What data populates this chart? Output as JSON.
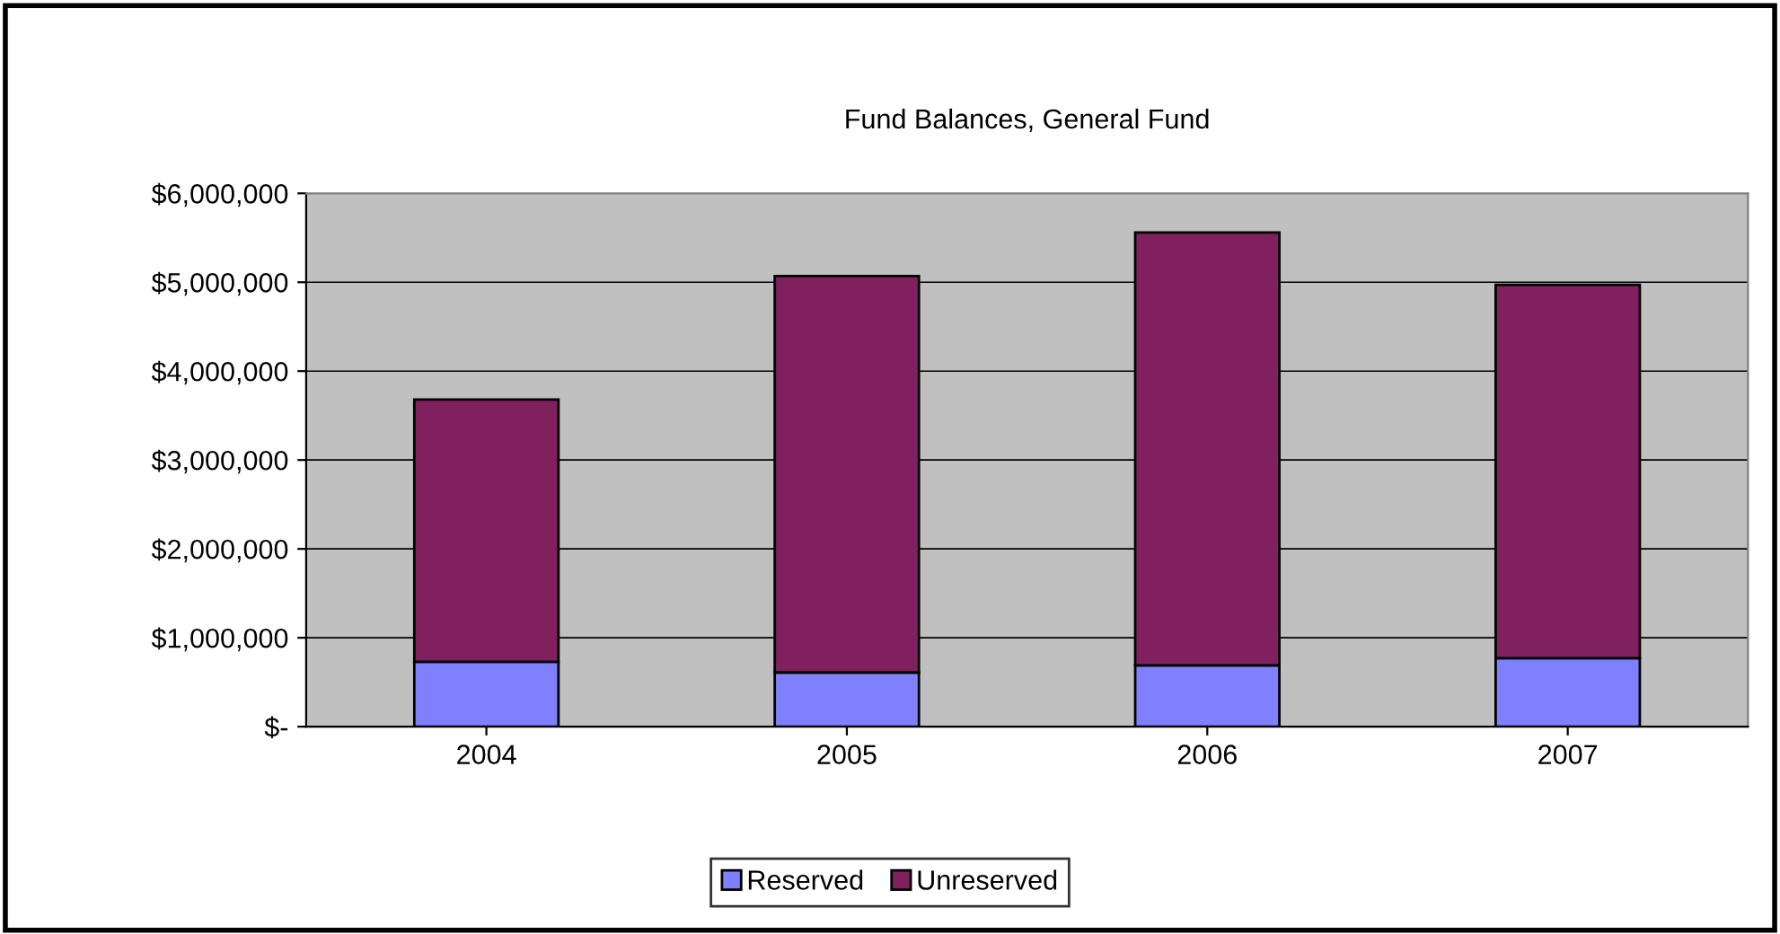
{
  "chart_data": {
    "type": "bar",
    "title": "Fund Balances, General Fund",
    "categories": [
      "2004",
      "2005",
      "2006",
      "2007"
    ],
    "stacked": true,
    "series": [
      {
        "name": "Reserved",
        "color": "#8080ff",
        "values": [
          730000,
          610000,
          690000,
          770000
        ]
      },
      {
        "name": "Unreserved",
        "color": "#80205f",
        "values": [
          2950000,
          4460000,
          4870000,
          4200000
        ]
      }
    ],
    "ylim": [
      0,
      6000000
    ],
    "yticks": [
      {
        "value": 0,
        "label": "$-"
      },
      {
        "value": 1000000,
        "label": "$1,000,000"
      },
      {
        "value": 2000000,
        "label": "$2,000,000"
      },
      {
        "value": 3000000,
        "label": "$3,000,000"
      },
      {
        "value": 4000000,
        "label": "$4,000,000"
      },
      {
        "value": 5000000,
        "label": "$5,000,000"
      },
      {
        "value": 6000000,
        "label": "$6,000,000"
      }
    ],
    "grid": "y",
    "legend": "bottom"
  }
}
